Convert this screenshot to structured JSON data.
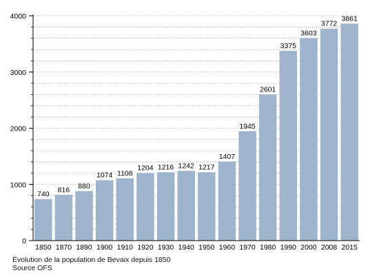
{
  "colors": {
    "bar": "#9db4cc",
    "axis": "#000000",
    "grid": "#000000",
    "text": "#000000"
  },
  "caption": {
    "line1": "Évolution de la population de Bevaix depuis 1850",
    "line2": "Source OFS"
  },
  "chart_data": {
    "type": "bar",
    "categories": [
      "1850",
      "1870",
      "1890",
      "1900",
      "1910",
      "1920",
      "1930",
      "1940",
      "1950",
      "1960",
      "1970",
      "1980",
      "1990",
      "2000",
      "2008",
      "2015"
    ],
    "values": [
      740,
      816,
      880,
      1074,
      1108,
      1204,
      1216,
      1242,
      1217,
      1407,
      1945,
      2601,
      3375,
      3603,
      3772,
      3861
    ],
    "data_labels": [
      "740",
      "816",
      "880",
      "1074",
      "1108",
      "1204",
      "1216",
      "1242",
      "1217",
      "1407",
      "1945",
      "2601",
      "3375",
      "3603",
      "3772",
      "3861"
    ],
    "y_ticks": [
      "0",
      "1000",
      "2000",
      "3000",
      "4000"
    ],
    "ylim": [
      0,
      4000
    ],
    "grid": true,
    "legend": "none"
  }
}
